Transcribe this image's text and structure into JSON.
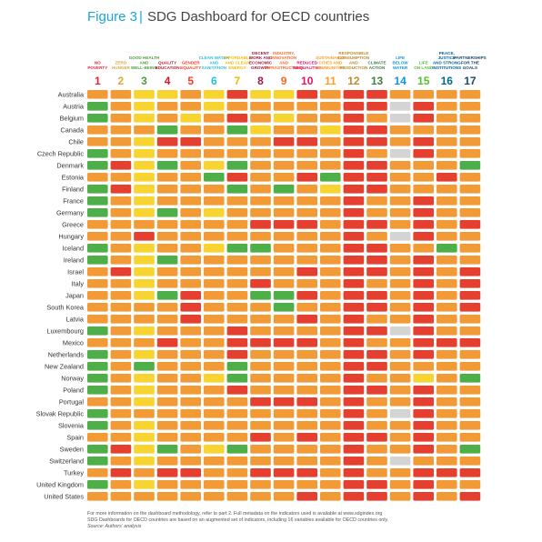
{
  "figure": {
    "label": "Figure 3",
    "separator": "|",
    "title": "SDG Dashboard for OECD countries"
  },
  "colors": {
    "green": "#4eae48",
    "yellow": "#f7d42f",
    "orange": "#f29a35",
    "red": "#e5402f",
    "grey": "#d4d4d4"
  },
  "chart_data": {
    "type": "heatmap",
    "title": "SDG Dashboard for OECD countries",
    "columns": [
      {
        "number": "1",
        "lines": [
          "NO",
          "POVERTY"
        ],
        "color": "#e5243b"
      },
      {
        "number": "2",
        "lines": [
          "ZERO",
          "HUNGER"
        ],
        "color": "#dda63a"
      },
      {
        "number": "3",
        "lines": [
          "GOOD HEALTH",
          "AND",
          "WELL-BEING"
        ],
        "color": "#4c9f38"
      },
      {
        "number": "4",
        "lines": [
          "QUALITY",
          "EDUCATION"
        ],
        "color": "#c5192d"
      },
      {
        "number": "5",
        "lines": [
          "GENDER",
          "EQUALITY"
        ],
        "color": "#ff3a21"
      },
      {
        "number": "6",
        "lines": [
          "CLEAN WATER",
          "AND",
          "SANITATION"
        ],
        "color": "#26bde2"
      },
      {
        "number": "7",
        "lines": [
          "AFFORDABLE",
          "AND CLEAN",
          "ENERGY"
        ],
        "color": "#f5b700"
      },
      {
        "number": "8",
        "lines": [
          "DECENT",
          "WORK AND",
          "ECONOMIC",
          "GROWTH"
        ],
        "color": "#a21942"
      },
      {
        "number": "9",
        "lines": [
          "INDUSTRY,",
          "INNOVATION",
          "AND",
          "INFRASTRUCTURE"
        ],
        "color": "#fd6925"
      },
      {
        "number": "10",
        "lines": [
          "REDUCED",
          "INEQUALITIES"
        ],
        "color": "#dd1367"
      },
      {
        "number": "11",
        "lines": [
          "SUSTAINABLE",
          "CITIES AND",
          "COMMUNITIES"
        ],
        "color": "#fd9d24"
      },
      {
        "number": "12",
        "lines": [
          "RESPONSIBLE",
          "CONSUMPTION",
          "AND",
          "PRODUCTION"
        ],
        "color": "#bf8b2e"
      },
      {
        "number": "13",
        "lines": [
          "CLIMATE",
          "ACTION"
        ],
        "color": "#3f7e44"
      },
      {
        "number": "14",
        "lines": [
          "LIFE",
          "BELOW",
          "WATER"
        ],
        "color": "#0a97d9"
      },
      {
        "number": "15",
        "lines": [
          "LIFE",
          "ON LAND"
        ],
        "color": "#56c02b"
      },
      {
        "number": "16",
        "lines": [
          "PEACE,",
          "JUSTICE",
          "AND STRONG",
          "INSTITUTIONS"
        ],
        "color": "#00689d"
      },
      {
        "number": "17",
        "lines": [
          "PARTNERSHIPS",
          "FOR THE",
          "GOALS"
        ],
        "color": "#19486a"
      }
    ],
    "rows": [
      {
        "country": "Australia",
        "cells": [
          "o",
          "o",
          "y",
          "y",
          "o",
          "y",
          "r",
          "y",
          "y",
          "r",
          "o",
          "r",
          "r",
          "o",
          "o",
          "o",
          "o"
        ]
      },
      {
        "country": "Austria",
        "cells": [
          "g",
          "o",
          "y",
          "o",
          "o",
          "y",
          "o",
          "o",
          "o",
          "o",
          "o",
          "r",
          "r",
          "x",
          "r",
          "o",
          "o"
        ]
      },
      {
        "country": "Belgium",
        "cells": [
          "g",
          "o",
          "y",
          "o",
          "y",
          "o",
          "r",
          "o",
          "y",
          "o",
          "o",
          "r",
          "o",
          "x",
          "r",
          "o",
          "o"
        ]
      },
      {
        "country": "Canada",
        "cells": [
          "o",
          "o",
          "o",
          "g",
          "o",
          "o",
          "g",
          "y",
          "o",
          "o",
          "y",
          "r",
          "r",
          "o",
          "o",
          "o",
          "o"
        ]
      },
      {
        "country": "Chile",
        "cells": [
          "o",
          "o",
          "y",
          "r",
          "r",
          "o",
          "o",
          "o",
          "r",
          "r",
          "o",
          "r",
          "r",
          "o",
          "r",
          "o",
          "o"
        ]
      },
      {
        "country": "Czech Republic",
        "cells": [
          "g",
          "o",
          "y",
          "o",
          "o",
          "o",
          "o",
          "o",
          "o",
          "o",
          "o",
          "r",
          "o",
          "x",
          "r",
          "o",
          "o"
        ]
      },
      {
        "country": "Denmark",
        "cells": [
          "g",
          "r",
          "y",
          "g",
          "o",
          "y",
          "g",
          "o",
          "o",
          "o",
          "o",
          "r",
          "r",
          "o",
          "o",
          "o",
          "g"
        ]
      },
      {
        "country": "Estonia",
        "cells": [
          "o",
          "o",
          "y",
          "o",
          "o",
          "g",
          "r",
          "o",
          "o",
          "r",
          "g",
          "r",
          "r",
          "o",
          "o",
          "r",
          "o"
        ]
      },
      {
        "country": "Finland",
        "cells": [
          "g",
          "r",
          "y",
          "o",
          "o",
          "o",
          "g",
          "o",
          "g",
          "o",
          "y",
          "r",
          "r",
          "o",
          "o",
          "o",
          "o"
        ]
      },
      {
        "country": "France",
        "cells": [
          "g",
          "o",
          "y",
          "o",
          "o",
          "o",
          "o",
          "o",
          "o",
          "o",
          "o",
          "r",
          "o",
          "o",
          "r",
          "o",
          "o"
        ]
      },
      {
        "country": "Germany",
        "cells": [
          "g",
          "o",
          "y",
          "g",
          "o",
          "y",
          "o",
          "o",
          "o",
          "o",
          "o",
          "r",
          "o",
          "o",
          "r",
          "o",
          "o"
        ]
      },
      {
        "country": "Greece",
        "cells": [
          "o",
          "o",
          "o",
          "o",
          "o",
          "o",
          "o",
          "r",
          "r",
          "r",
          "o",
          "r",
          "r",
          "o",
          "r",
          "o",
          "r"
        ]
      },
      {
        "country": "Hungary",
        "cells": [
          "o",
          "o",
          "r",
          "o",
          "o",
          "o",
          "o",
          "o",
          "o",
          "o",
          "o",
          "r",
          "o",
          "x",
          "r",
          "o",
          "o"
        ]
      },
      {
        "country": "Iceland",
        "cells": [
          "g",
          "o",
          "y",
          "o",
          "o",
          "y",
          "g",
          "g",
          "o",
          "o",
          "o",
          "r",
          "r",
          "o",
          "o",
          "g",
          "o"
        ]
      },
      {
        "country": "Ireland",
        "cells": [
          "g",
          "o",
          "y",
          "g",
          "o",
          "o",
          "o",
          "o",
          "o",
          "o",
          "o",
          "r",
          "r",
          "o",
          "r",
          "o",
          "o"
        ]
      },
      {
        "country": "Israel",
        "cells": [
          "o",
          "r",
          "y",
          "o",
          "o",
          "o",
          "o",
          "o",
          "o",
          "r",
          "o",
          "r",
          "r",
          "o",
          "r",
          "o",
          "r"
        ]
      },
      {
        "country": "Italy",
        "cells": [
          "o",
          "o",
          "y",
          "o",
          "o",
          "o",
          "o",
          "r",
          "o",
          "o",
          "o",
          "r",
          "o",
          "o",
          "r",
          "o",
          "r"
        ]
      },
      {
        "country": "Japan",
        "cells": [
          "o",
          "o",
          "y",
          "g",
          "r",
          "o",
          "o",
          "g",
          "g",
          "r",
          "o",
          "r",
          "r",
          "o",
          "r",
          "o",
          "r"
        ]
      },
      {
        "country": "South Korea",
        "cells": [
          "o",
          "o",
          "o",
          "o",
          "r",
          "o",
          "o",
          "o",
          "g",
          "o",
          "o",
          "r",
          "r",
          "o",
          "r",
          "o",
          "r"
        ]
      },
      {
        "country": "Latvia",
        "cells": [
          "o",
          "o",
          "o",
          "o",
          "r",
          "o",
          "o",
          "o",
          "o",
          "r",
          "o",
          "r",
          "o",
          "o",
          "r",
          "o",
          "o"
        ]
      },
      {
        "country": "Luxembourg",
        "cells": [
          "g",
          "o",
          "y",
          "o",
          "o",
          "o",
          "r",
          "o",
          "o",
          "o",
          "o",
          "r",
          "r",
          "x",
          "r",
          "o",
          "o"
        ]
      },
      {
        "country": "Mexico",
        "cells": [
          "o",
          "o",
          "o",
          "r",
          "o",
          "o",
          "r",
          "r",
          "r",
          "r",
          "o",
          "r",
          "o",
          "o",
          "r",
          "r",
          "r"
        ]
      },
      {
        "country": "Netherlands",
        "cells": [
          "g",
          "o",
          "y",
          "o",
          "o",
          "o",
          "r",
          "o",
          "o",
          "o",
          "o",
          "r",
          "r",
          "o",
          "r",
          "o",
          "o"
        ]
      },
      {
        "country": "New Zealand",
        "cells": [
          "g",
          "o",
          "g",
          "o",
          "o",
          "o",
          "g",
          "o",
          "o",
          "o",
          "o",
          "r",
          "r",
          "o",
          "o",
          "o",
          "o"
        ]
      },
      {
        "country": "Norway",
        "cells": [
          "g",
          "o",
          "y",
          "o",
          "o",
          "y",
          "g",
          "o",
          "o",
          "o",
          "o",
          "r",
          "o",
          "o",
          "y",
          "o",
          "g"
        ]
      },
      {
        "country": "Poland",
        "cells": [
          "g",
          "o",
          "y",
          "o",
          "o",
          "o",
          "r",
          "o",
          "o",
          "o",
          "o",
          "r",
          "r",
          "o",
          "r",
          "o",
          "o"
        ]
      },
      {
        "country": "Portugal",
        "cells": [
          "o",
          "o",
          "y",
          "o",
          "o",
          "o",
          "o",
          "r",
          "r",
          "r",
          "o",
          "r",
          "o",
          "o",
          "r",
          "o",
          "o"
        ]
      },
      {
        "country": "Slovak Republic",
        "cells": [
          "g",
          "o",
          "o",
          "o",
          "o",
          "o",
          "o",
          "o",
          "o",
          "o",
          "o",
          "r",
          "o",
          "x",
          "r",
          "o",
          "o"
        ]
      },
      {
        "country": "Slovenia",
        "cells": [
          "g",
          "o",
          "y",
          "o",
          "o",
          "o",
          "o",
          "o",
          "o",
          "o",
          "o",
          "r",
          "o",
          "o",
          "r",
          "o",
          "o"
        ]
      },
      {
        "country": "Spain",
        "cells": [
          "o",
          "o",
          "y",
          "o",
          "o",
          "o",
          "o",
          "r",
          "o",
          "r",
          "o",
          "r",
          "r",
          "o",
          "r",
          "o",
          "o"
        ]
      },
      {
        "country": "Sweden",
        "cells": [
          "g",
          "r",
          "y",
          "g",
          "o",
          "y",
          "g",
          "o",
          "o",
          "o",
          "o",
          "r",
          "o",
          "o",
          "r",
          "o",
          "g"
        ]
      },
      {
        "country": "Switzerland",
        "cells": [
          "g",
          "o",
          "y",
          "o",
          "o",
          "o",
          "o",
          "o",
          "o",
          "o",
          "o",
          "r",
          "o",
          "x",
          "o",
          "o",
          "o"
        ]
      },
      {
        "country": "Turkey",
        "cells": [
          "o",
          "r",
          "o",
          "r",
          "r",
          "o",
          "o",
          "r",
          "r",
          "r",
          "o",
          "r",
          "o",
          "o",
          "r",
          "r",
          "r"
        ]
      },
      {
        "country": "United Kingdom",
        "cells": [
          "g",
          "o",
          "y",
          "o",
          "o",
          "o",
          "o",
          "o",
          "o",
          "o",
          "o",
          "r",
          "r",
          "o",
          "r",
          "o",
          "o"
        ]
      },
      {
        "country": "United States",
        "cells": [
          "o",
          "o",
          "o",
          "o",
          "o",
          "o",
          "o",
          "o",
          "o",
          "r",
          "o",
          "r",
          "r",
          "o",
          "r",
          "o",
          "r"
        ]
      }
    ],
    "legend_codes": {
      "g": "green",
      "y": "yellow",
      "o": "orange",
      "r": "red",
      "x": "grey"
    }
  },
  "notes": {
    "line1": "For more information on the dashboard methodology, refer to part 2. Full metadata on the indicators used is available at www.sdgindex.org",
    "line2": "SDG Dashboards for OECD countries are based on an augmented set of indicators, including 16 variables available for OECD countries only.",
    "source": "Source: Authors' analysis"
  }
}
